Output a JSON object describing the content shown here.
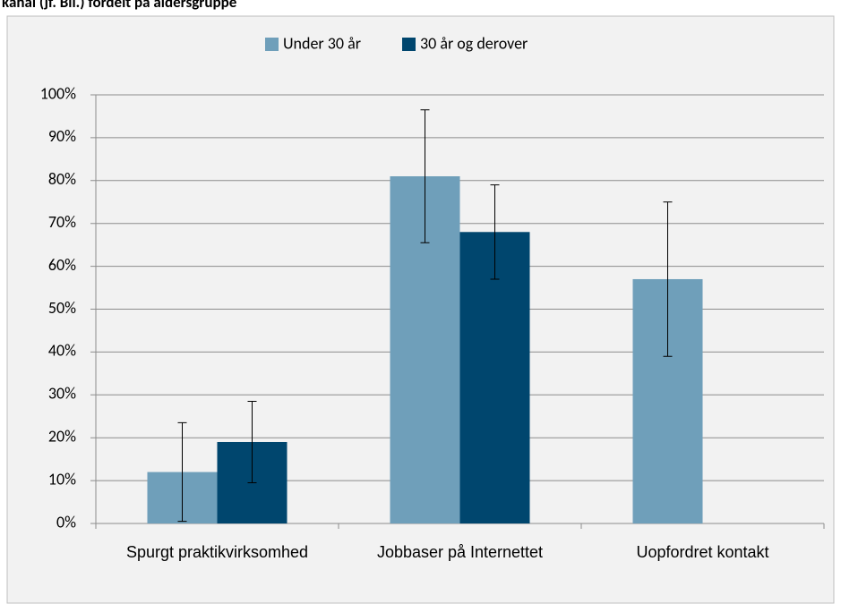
{
  "chart_data": {
    "type": "bar",
    "title": "kanal (jf. Bil.) fordelt på aldersgruppe",
    "categories": [
      "Spurgt praktikvirksomhed",
      "Jobbaser på Internettet",
      "Uopfordret kontakt"
    ],
    "series": [
      {
        "name": "Under 30 år",
        "color": "#6f9fba",
        "values": [
          12,
          81,
          57
        ],
        "errors": [
          11.5,
          15.5,
          18
        ]
      },
      {
        "name": "30 år og derover",
        "color": "#00466e",
        "values": [
          19,
          68,
          null
        ],
        "errors": [
          9.5,
          11,
          null
        ]
      }
    ],
    "ylim": [
      0,
      100
    ],
    "yticks": [
      {
        "value": 0,
        "label": "0%"
      },
      {
        "value": 10,
        "label": "10%"
      },
      {
        "value": 20,
        "label": "20%"
      },
      {
        "value": 30,
        "label": "30%"
      },
      {
        "value": 40,
        "label": "40%"
      },
      {
        "value": 50,
        "label": "50%"
      },
      {
        "value": 60,
        "label": "60%"
      },
      {
        "value": 70,
        "label": "70%"
      },
      {
        "value": 80,
        "label": "80%"
      },
      {
        "value": 90,
        "label": "90%"
      },
      {
        "value": 100,
        "label": "100%"
      }
    ],
    "grid": true,
    "legend": "top"
  }
}
